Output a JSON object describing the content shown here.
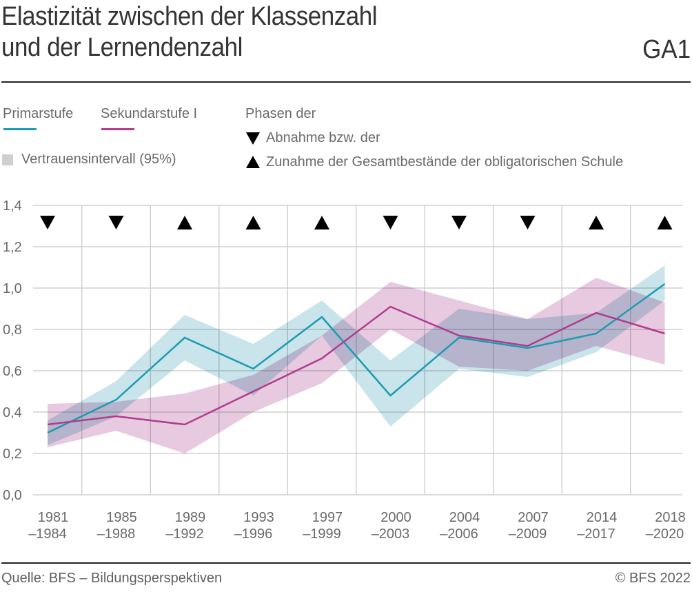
{
  "header": {
    "title_line1": "Elastizität zwischen der Klassenzahl",
    "title_line2": "und der Lernendenzahl",
    "code": "GA1"
  },
  "legend": {
    "series1": "Primarstufe",
    "series2": "Sekundarstufe I",
    "ci": "Vertrauensintervall (95%)",
    "phases_title": "Phasen der",
    "phase_down": "Abnahme bzw. der",
    "phase_up": "Zunahme der Gesamtbestände der obligatorischen Schule"
  },
  "colors": {
    "primar": "#1a9bb0",
    "primar_band": "#c6e3e9",
    "sek": "#b03c8c",
    "sek_band": "#e6c6de",
    "overlap": "#b4a8d0",
    "grid": "#d0d0d0"
  },
  "footer": {
    "source": "Quelle: BFS – Bildungsperspektiven",
    "copyright": "© BFS 2022"
  },
  "chart_data": {
    "type": "line",
    "title": "Elastizität zwischen der Klassenzahl und der Lernendenzahl",
    "xlabel": "",
    "ylabel": "",
    "ylim": [
      0,
      1.4
    ],
    "yticks": [
      "0,0",
      "0,2",
      "0,4",
      "0,6",
      "0,8",
      "1,0",
      "1,2",
      "1,4"
    ],
    "ytick_values": [
      0,
      0.2,
      0.4,
      0.6,
      0.8,
      1.0,
      1.2,
      1.4
    ],
    "grid": true,
    "legend_position": "top-left",
    "categories": [
      [
        "1981",
        "–1984"
      ],
      [
        "1985",
        "–1988"
      ],
      [
        "1989",
        "–1992"
      ],
      [
        "1993",
        "–1996"
      ],
      [
        "1997",
        "–1999"
      ],
      [
        "2000",
        "–2003"
      ],
      [
        "2004",
        "–2006"
      ],
      [
        "2007",
        "–2009"
      ],
      [
        "2014",
        "–2017"
      ],
      [
        "2018",
        "–2020"
      ]
    ],
    "phases": [
      "down",
      "down",
      "up",
      "up",
      "up",
      "down",
      "down",
      "down",
      "up",
      "up"
    ],
    "series": [
      {
        "name": "Primarstufe",
        "values": [
          0.3,
          0.46,
          0.76,
          0.61,
          0.86,
          0.48,
          0.76,
          0.71,
          0.78,
          1.02
        ],
        "ci_lower": [
          0.24,
          0.38,
          0.65,
          0.48,
          0.77,
          0.33,
          0.61,
          0.57,
          0.69,
          0.94
        ],
        "ci_upper": [
          0.36,
          0.55,
          0.87,
          0.73,
          0.94,
          0.65,
          0.9,
          0.85,
          0.88,
          1.11
        ]
      },
      {
        "name": "Sekundarstufe I",
        "values": [
          0.34,
          0.38,
          0.34,
          0.5,
          0.66,
          0.91,
          0.77,
          0.72,
          0.88,
          0.78
        ],
        "ci_lower": [
          0.23,
          0.31,
          0.2,
          0.4,
          0.54,
          0.8,
          0.62,
          0.6,
          0.72,
          0.63
        ],
        "ci_upper": [
          0.44,
          0.45,
          0.49,
          0.58,
          0.77,
          1.03,
          0.94,
          0.85,
          1.05,
          0.93
        ]
      }
    ]
  }
}
